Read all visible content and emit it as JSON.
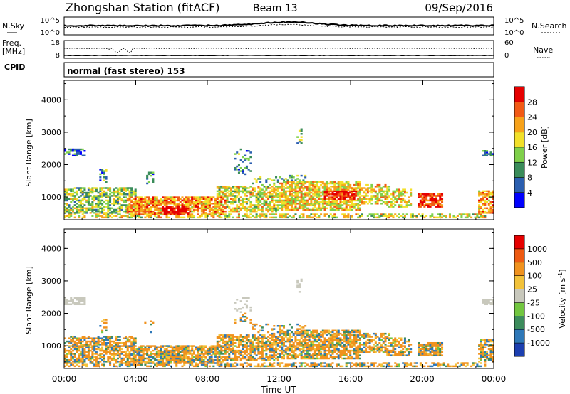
{
  "header": {
    "title": "Zhongshan Station (fitACF)",
    "beam": "Beam 13",
    "date": "09/Sep/2016"
  },
  "sky_panel": {
    "left_label": "N.Sky",
    "right_label": "N.Search",
    "left_ticks": [
      "10^5",
      "10^0"
    ],
    "right_ticks": [
      "10^5",
      "10^0"
    ]
  },
  "freq_panel": {
    "left_label_1": "Freq.",
    "left_label_2": "[MHz]",
    "right_label": "Nave",
    "left_ticks": [
      "18",
      "8"
    ],
    "right_ticks": [
      "60",
      "0"
    ]
  },
  "cpid": {
    "label": "CPID",
    "value": "normal (fast stereo) 153"
  },
  "chart_data": [
    {
      "type": "heatmap",
      "name": "power",
      "ylabel": "Slant Range [km]",
      "ylim": [
        300,
        4600
      ],
      "y_ticks": [
        "1000",
        "2000",
        "3000",
        "4000"
      ],
      "x_range_hours": [
        0,
        24
      ],
      "colorbar": {
        "label": "Power [dB]",
        "tick_labels": [
          "4",
          "8",
          "12",
          "16",
          "20",
          "24",
          "28"
        ],
        "colors": [
          "#0000ff",
          "#2b5fb0",
          "#3a8c5a",
          "#7fd04a",
          "#f2e02a",
          "#f7a21a",
          "#f25a15",
          "#e60000"
        ],
        "range": [
          0,
          32
        ]
      }
    },
    {
      "type": "heatmap",
      "name": "velocity",
      "ylabel": "Slant Range [km]",
      "ylim": [
        300,
        4600
      ],
      "y_ticks": [
        "1000",
        "2000",
        "3000",
        "4000"
      ],
      "x_range_hours": [
        0,
        24
      ],
      "colorbar": {
        "label": "Velocity [m s^-1]",
        "tick_labels": [
          "1000",
          "500",
          "100",
          "25",
          "-25",
          "-100",
          "-500",
          "-1000"
        ],
        "colors": [
          "#1c3fb0",
          "#2e78b8",
          "#3c8c5c",
          "#72c640",
          "#c8c8bc",
          "#f2c23a",
          "#f0921e",
          "#ee5a12",
          "#e60000"
        ]
      }
    }
  ],
  "x_axis": {
    "label": "Time UT",
    "tick_labels": [
      "00:00",
      "04:00",
      "08:00",
      "12:00",
      "16:00",
      "20:00",
      "00:00"
    ]
  }
}
